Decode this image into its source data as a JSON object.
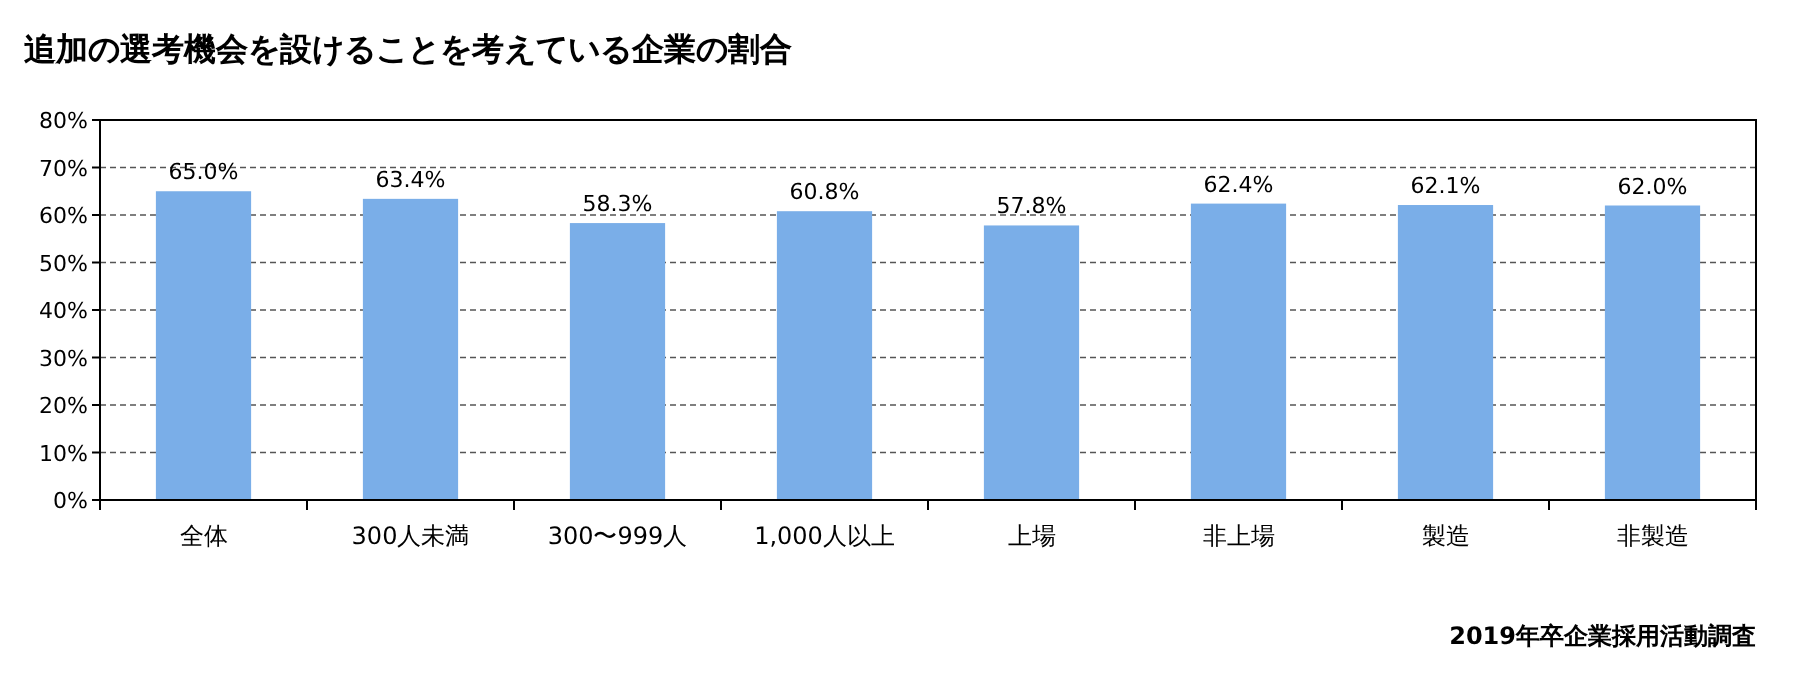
{
  "chart_data": {
    "type": "bar",
    "title": "追加の選考機会を設けることを考えている企業の割合",
    "categories": [
      "全体",
      "300人未満",
      "300〜999人",
      "1,000人以上",
      "上場",
      "非上場",
      "製造",
      "非製造"
    ],
    "values": [
      65.0,
      63.4,
      58.3,
      60.8,
      57.8,
      62.4,
      62.1,
      62.0
    ],
    "value_labels": [
      "65.0%",
      "63.4%",
      "58.3%",
      "60.8%",
      "57.8%",
      "62.4%",
      "62.1%",
      "62.0%"
    ],
    "color": "#7aaee8",
    "ylim": [
      0,
      80
    ],
    "yticks": [
      {
        "value": 0,
        "label": "0%"
      },
      {
        "value": 10,
        "label": "10%"
      },
      {
        "value": 20,
        "label": "20%"
      },
      {
        "value": 30,
        "label": "30%"
      },
      {
        "value": 40,
        "label": "40%"
      },
      {
        "value": 50,
        "label": "50%"
      },
      {
        "value": 60,
        "label": "60%"
      },
      {
        "value": 70,
        "label": "70%"
      },
      {
        "value": 80,
        "label": "80%"
      }
    ],
    "grid": "y",
    "annotations": [
      "2019年卒企業採用活動調査"
    ]
  }
}
